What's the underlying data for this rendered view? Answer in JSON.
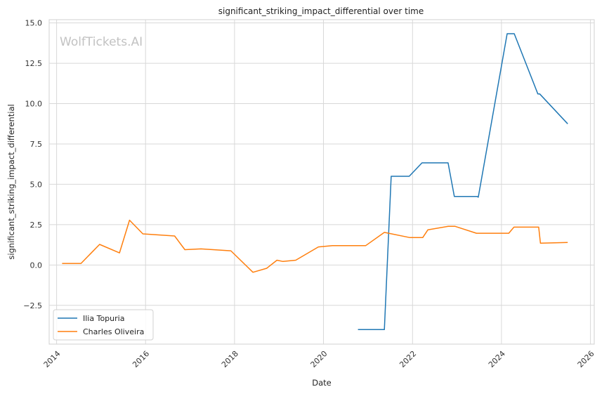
{
  "watermark": "WolfTickets.AI",
  "chart_data": {
    "type": "line",
    "title": "significant_striking_impact_differential over time",
    "xlabel": "Date",
    "ylabel": "significant_striking_impact_differential",
    "xlim": [
      "2013-11-01",
      "2026-02-01"
    ],
    "ylim": [
      -4.9,
      15.2
    ],
    "x_ticks": [
      "2014",
      "2016",
      "2018",
      "2020",
      "2022",
      "2024",
      "2026"
    ],
    "y_ticks": [
      -2.5,
      0.0,
      2.5,
      5.0,
      7.5,
      10.0,
      12.5,
      15.0
    ],
    "y_tick_labels": [
      "−2.5",
      "0.0",
      "2.5",
      "5.0",
      "7.5",
      "10.0",
      "12.5",
      "15.0"
    ],
    "grid": true,
    "legend_position": "lower-left",
    "series": [
      {
        "name": "Ilia Topuria",
        "color": "#1f77b4",
        "points": [
          [
            "2020-10-10",
            -4.0
          ],
          [
            "2021-05-15",
            -4.0
          ],
          [
            "2021-07-10",
            5.5
          ],
          [
            "2021-12-05",
            5.5
          ],
          [
            "2022-03-20",
            6.33
          ],
          [
            "2022-10-20",
            6.33
          ],
          [
            "2022-12-10",
            4.25
          ],
          [
            "2023-06-15",
            4.25
          ],
          [
            "2023-06-25",
            4.2
          ],
          [
            "2024-02-17",
            14.33
          ],
          [
            "2024-04-15",
            14.33
          ],
          [
            "2024-10-26",
            10.6
          ],
          [
            "2024-11-10",
            10.6
          ],
          [
            "2025-06-28",
            8.75
          ]
        ]
      },
      {
        "name": "Charles Oliveira",
        "color": "#ff7f0e",
        "points": [
          [
            "2014-02-15",
            0.1
          ],
          [
            "2014-07-20",
            0.1
          ],
          [
            "2014-12-20",
            1.28
          ],
          [
            "2015-06-01",
            0.75
          ],
          [
            "2015-08-23",
            2.78
          ],
          [
            "2015-12-10",
            1.93
          ],
          [
            "2016-08-27",
            1.8
          ],
          [
            "2016-11-19",
            0.95
          ],
          [
            "2017-04-01",
            1.0
          ],
          [
            "2017-12-02",
            0.88
          ],
          [
            "2018-06-01",
            -0.45
          ],
          [
            "2018-09-22",
            -0.2
          ],
          [
            "2018-12-15",
            0.3
          ],
          [
            "2019-02-02",
            0.22
          ],
          [
            "2019-05-18",
            0.3
          ],
          [
            "2019-11-20",
            1.12
          ],
          [
            "2020-03-14",
            1.2
          ],
          [
            "2020-12-12",
            1.2
          ],
          [
            "2021-05-15",
            2.02
          ],
          [
            "2021-12-11",
            1.7
          ],
          [
            "2022-03-26",
            1.7
          ],
          [
            "2022-05-07",
            2.18
          ],
          [
            "2022-10-22",
            2.4
          ],
          [
            "2022-12-15",
            2.4
          ],
          [
            "2023-06-10",
            1.97
          ],
          [
            "2024-03-01",
            1.97
          ],
          [
            "2024-04-13",
            2.35
          ],
          [
            "2024-11-02",
            2.35
          ],
          [
            "2024-11-16",
            1.35
          ],
          [
            "2025-06-28",
            1.4
          ]
        ]
      }
    ]
  }
}
